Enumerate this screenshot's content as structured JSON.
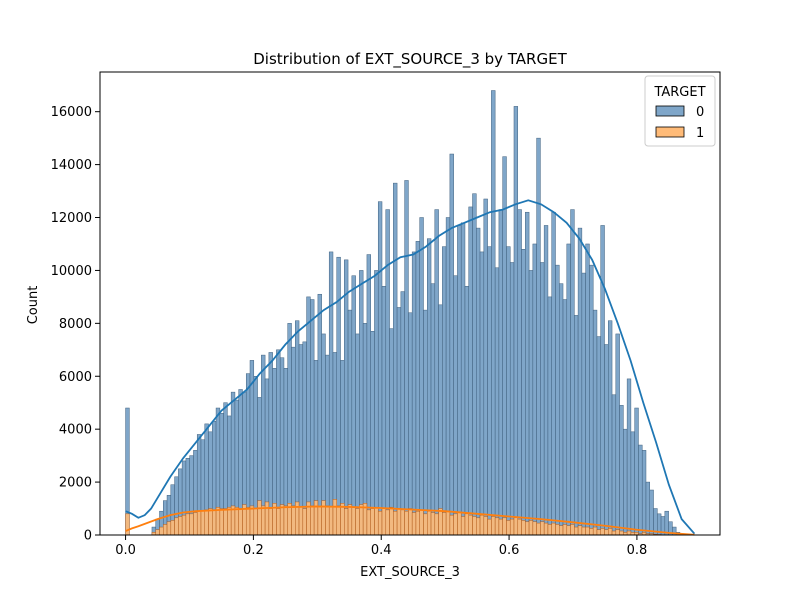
{
  "chart_data": {
    "type": "histogram",
    "title": "Distribution of EXT_SOURCE_3 by TARGET",
    "xlabel": "EXT_SOURCE_3",
    "ylabel": "Count",
    "xlim": [
      -0.04,
      0.93
    ],
    "ylim": [
      0,
      17500
    ],
    "xticks": [
      0.0,
      0.2,
      0.4,
      0.6,
      0.8
    ],
    "xtick_labels": [
      "0.0",
      "0.2",
      "0.4",
      "0.6",
      "0.8"
    ],
    "yticks": [
      0,
      2000,
      4000,
      6000,
      8000,
      10000,
      12000,
      14000,
      16000
    ],
    "ytick_labels": [
      "0",
      "2000",
      "4000",
      "6000",
      "8000",
      "10000",
      "12000",
      "14000",
      "16000"
    ],
    "bin_start": 0.0,
    "bin_width": 0.0059,
    "legend": {
      "title": "TARGET",
      "position": "upper right"
    },
    "colors": {
      "series0_fill": "#7fa6c9",
      "series0_edge": "#3e5f7d",
      "series0_kde": "#1f77b4",
      "series1_fill": "#ffbb78",
      "series1_edge": "#b05a1a",
      "series1_kde": "#ff7f0e"
    },
    "series": [
      {
        "name": "0",
        "values": [
          4800,
          0,
          0,
          0,
          0,
          0,
          0,
          300,
          600,
          900,
          1300,
          1500,
          1900,
          2200,
          2500,
          2800,
          2900,
          3000,
          3200,
          3800,
          3600,
          4200,
          3900,
          4300,
          4800,
          4600,
          5000,
          4500,
          5400,
          5100,
          5500,
          5400,
          6100,
          6600,
          6000,
          5200,
          6800,
          5900,
          6900,
          6300,
          7000,
          6700,
          6300,
          8000,
          7100,
          8100,
          7200,
          7300,
          9000,
          8900,
          6600,
          9100,
          7600,
          6800,
          10700,
          6900,
          10500,
          6600,
          10400,
          8500,
          9800,
          7600,
          10000,
          8000,
          10600,
          7700,
          10000,
          12600,
          9400,
          12300,
          7800,
          13300,
          8600,
          9200,
          13400,
          8400,
          10700,
          11100,
          12000,
          8500,
          11200,
          9500,
          12300,
          8700,
          10900,
          12000,
          14400,
          9800,
          11700,
          11800,
          9400,
          12400,
          12900,
          11600,
          10700,
          12700,
          10900,
          16800,
          10100,
          12300,
          14300,
          10900,
          10300,
          16200,
          12300,
          10800,
          12200,
          10000,
          11000,
          15000,
          10300,
          11700,
          9000,
          12200,
          10200,
          9500,
          8900,
          11000,
          12300,
          8300,
          11600,
          9900,
          11000,
          10200,
          8500,
          7500,
          11700,
          7200,
          8100,
          5300,
          7600,
          4900,
          4000,
          5900,
          3900,
          4800,
          3400,
          3200,
          2000,
          1700,
          1000,
          800,
          700,
          900,
          500,
          300,
          100,
          50
        ]
      },
      {
        "name": "1",
        "values": [
          800,
          0,
          0,
          0,
          0,
          0,
          0,
          100,
          200,
          300,
          400,
          500,
          550,
          650,
          700,
          750,
          800,
          800,
          850,
          900,
          900,
          950,
          1000,
          950,
          1050,
          1000,
          1000,
          1050,
          1100,
          1050,
          1000,
          1150,
          1050,
          1100,
          1000,
          1300,
          1100,
          1250,
          1000,
          1200,
          1000,
          1150,
          1100,
          1200,
          1100,
          1250,
          1050,
          1000,
          1250,
          1100,
          1300,
          1050,
          1300,
          1100,
          1050,
          1350,
          1100,
          1200,
          1000,
          1150,
          1050,
          1000,
          1150,
          1200,
          950,
          1000,
          1050,
          900,
          1000,
          950,
          1050,
          900,
          1000,
          950,
          900,
          1000,
          850,
          900,
          950,
          800,
          900,
          850,
          800,
          1000,
          850,
          900,
          750,
          800,
          850,
          700,
          800,
          750,
          700,
          650,
          750,
          700,
          600,
          700,
          650,
          600,
          650,
          550,
          600,
          650,
          600,
          550,
          500,
          550,
          500,
          450,
          500,
          450,
          400,
          450,
          400,
          350,
          400,
          350,
          400,
          300,
          350,
          300,
          300,
          250,
          300,
          200,
          250,
          200,
          250,
          150,
          200,
          150,
          100,
          150,
          100,
          100,
          50,
          100,
          50,
          50,
          30,
          20,
          10,
          10,
          10,
          5,
          0,
          0
        ]
      }
    ],
    "kde": [
      {
        "name": "0",
        "x": [
          0.0,
          0.01,
          0.02,
          0.03,
          0.04,
          0.05,
          0.07,
          0.09,
          0.11,
          0.13,
          0.15,
          0.17,
          0.19,
          0.21,
          0.23,
          0.25,
          0.27,
          0.29,
          0.31,
          0.33,
          0.35,
          0.37,
          0.39,
          0.41,
          0.43,
          0.45,
          0.47,
          0.49,
          0.51,
          0.53,
          0.55,
          0.57,
          0.59,
          0.61,
          0.63,
          0.65,
          0.67,
          0.69,
          0.71,
          0.73,
          0.75,
          0.77,
          0.79,
          0.81,
          0.83,
          0.85,
          0.87,
          0.89
        ],
        "y": [
          900,
          800,
          650,
          750,
          1000,
          1400,
          2200,
          2900,
          3500,
          4100,
          4700,
          5100,
          5500,
          6100,
          6600,
          7200,
          7700,
          8100,
          8500,
          8800,
          9200,
          9500,
          9800,
          10200,
          10500,
          10600,
          10900,
          11300,
          11600,
          11800,
          12000,
          12200,
          12300,
          12500,
          12650,
          12500,
          12200,
          11800,
          11200,
          10400,
          9300,
          8000,
          6600,
          5000,
          3500,
          1900,
          600,
          50
        ]
      },
      {
        "name": "1",
        "x": [
          0.0,
          0.01,
          0.02,
          0.03,
          0.05,
          0.07,
          0.09,
          0.11,
          0.15,
          0.2,
          0.25,
          0.3,
          0.35,
          0.4,
          0.45,
          0.5,
          0.55,
          0.6,
          0.65,
          0.7,
          0.75,
          0.8,
          0.85,
          0.89
        ],
        "y": [
          150,
          250,
          330,
          420,
          600,
          750,
          850,
          900,
          950,
          1000,
          1050,
          1080,
          1060,
          1020,
          960,
          900,
          800,
          700,
          600,
          480,
          350,
          200,
          80,
          10
        ]
      }
    ]
  }
}
